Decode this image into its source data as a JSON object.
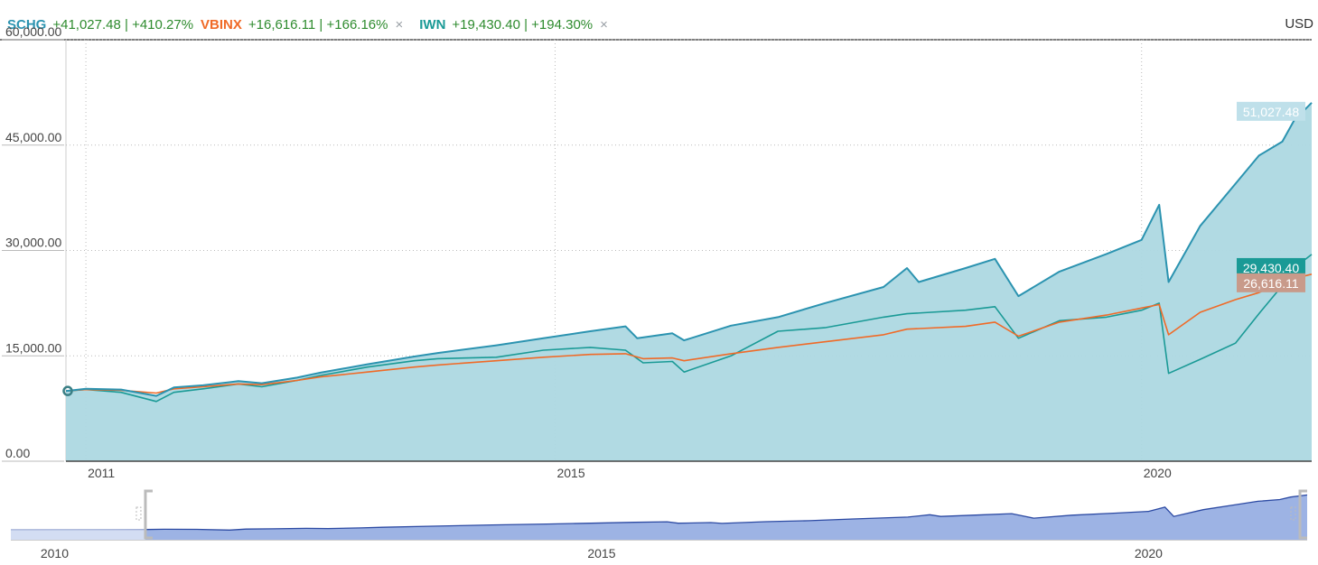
{
  "currency": "USD",
  "legend": {
    "schg": {
      "symbol": "SCHG",
      "change": "+41,027.48 | +410.27%",
      "color": "#2b93b0"
    },
    "vbinx": {
      "symbol": "VBINX",
      "change": "+16,616.11 | +166.16%",
      "color": "#f06a27"
    },
    "iwn": {
      "symbol": "IWN",
      "change": "+19,430.40 | +194.30%",
      "color": "#1a9a96"
    },
    "remove_icon": "×"
  },
  "chart_data": {
    "type": "line",
    "title": "",
    "xlabel": "",
    "ylabel": "",
    "x_ticks": [
      "2011",
      "2015",
      "2020"
    ],
    "y_ticks": [
      "0.00",
      "15,000.00",
      "30,000.00",
      "45,000.00",
      "60,000.00"
    ],
    "ylim": [
      0,
      60000
    ],
    "xlim": [
      2010.83,
      2021.45
    ],
    "grid": true,
    "end_labels": [
      "51,027.48",
      "29,430.40",
      "26,616.11"
    ],
    "series": [
      {
        "name": "SCHG",
        "color": "#2b93b0",
        "fill": "#add8e2",
        "x": [
          2010.83,
          2011.0,
          2011.3,
          2011.6,
          2011.75,
          2012.0,
          2012.3,
          2012.5,
          2012.8,
          2013.0,
          2013.4,
          2013.8,
          2014.0,
          2014.5,
          2014.9,
          2015.3,
          2015.6,
          2015.7,
          2016.0,
          2016.1,
          2016.5,
          2016.9,
          2017.3,
          2017.8,
          2018.0,
          2018.1,
          2018.5,
          2018.75,
          2018.95,
          2019.3,
          2019.7,
          2020.0,
          2020.15,
          2020.23,
          2020.5,
          2020.8,
          2021.0,
          2021.2,
          2021.3,
          2021.45
        ],
        "y": [
          10000,
          10300,
          10200,
          9300,
          10500,
          10800,
          11400,
          11100,
          11900,
          12600,
          13800,
          14900,
          15400,
          16500,
          17500,
          18500,
          19200,
          17500,
          18200,
          17200,
          19300,
          20500,
          22500,
          24800,
          27500,
          25500,
          27500,
          28800,
          23500,
          27000,
          29500,
          31500,
          36500,
          25500,
          33500,
          39500,
          43500,
          45500,
          48500,
          51027
        ]
      },
      {
        "name": "IWN",
        "color": "#1a9a96",
        "x": [
          2010.83,
          2011.0,
          2011.3,
          2011.6,
          2011.75,
          2012.0,
          2012.3,
          2012.5,
          2012.8,
          2013.0,
          2013.4,
          2013.8,
          2014.0,
          2014.5,
          2014.9,
          2015.3,
          2015.6,
          2015.75,
          2016.0,
          2016.1,
          2016.5,
          2016.9,
          2017.3,
          2017.8,
          2018.0,
          2018.5,
          2018.75,
          2018.95,
          2019.3,
          2019.7,
          2020.0,
          2020.15,
          2020.23,
          2020.5,
          2020.8,
          2021.0,
          2021.2,
          2021.3,
          2021.45
        ],
        "y": [
          10000,
          10200,
          9800,
          8500,
          9800,
          10300,
          11000,
          10600,
          11500,
          12200,
          13400,
          14300,
          14600,
          14800,
          15800,
          16200,
          15800,
          14000,
          14200,
          12700,
          15000,
          18500,
          19000,
          20500,
          21000,
          21500,
          22000,
          17500,
          20000,
          20500,
          21500,
          22500,
          12500,
          14500,
          16800,
          21000,
          25000,
          27500,
          29430
        ]
      },
      {
        "name": "VBINX",
        "color": "#f06a27",
        "x": [
          2010.83,
          2011.0,
          2011.3,
          2011.6,
          2011.75,
          2012.0,
          2012.3,
          2012.5,
          2012.8,
          2013.0,
          2013.4,
          2013.8,
          2014.0,
          2014.5,
          2014.9,
          2015.3,
          2015.6,
          2015.75,
          2016.0,
          2016.1,
          2016.5,
          2016.9,
          2017.3,
          2017.8,
          2018.0,
          2018.5,
          2018.75,
          2018.95,
          2019.3,
          2019.7,
          2020.0,
          2020.15,
          2020.23,
          2020.5,
          2020.8,
          2021.0,
          2021.2,
          2021.3,
          2021.45
        ],
        "y": [
          10000,
          10200,
          10100,
          9700,
          10300,
          10600,
          11000,
          10900,
          11500,
          12000,
          12700,
          13400,
          13700,
          14300,
          14800,
          15200,
          15300,
          14600,
          14700,
          14300,
          15300,
          16200,
          17000,
          18000,
          18800,
          19200,
          19800,
          17800,
          19800,
          20800,
          21800,
          22300,
          18000,
          21200,
          23000,
          24000,
          25500,
          26000,
          26616
        ]
      }
    ],
    "navigator": {
      "x_ticks": [
        "2010",
        "2015",
        "2020"
      ],
      "xlim": [
        2009.6,
        2021.45
      ],
      "window_start": 2010.83
    }
  }
}
